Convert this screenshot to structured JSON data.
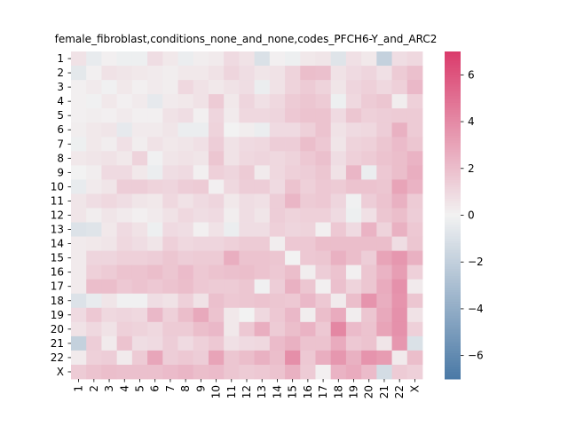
{
  "chart_data": {
    "type": "heatmap",
    "title": "female_fibroblast,conditions_none_and_none,codes_PFCH6-Y_and_ARC2",
    "xlabel": "",
    "ylabel": "",
    "x_categories": [
      "1",
      "2",
      "3",
      "4",
      "5",
      "6",
      "7",
      "8",
      "9",
      "10",
      "11",
      "12",
      "13",
      "14",
      "15",
      "16",
      "17",
      "18",
      "19",
      "20",
      "21",
      "22",
      "X"
    ],
    "y_categories": [
      "1",
      "2",
      "3",
      "4",
      "5",
      "6",
      "7",
      "8",
      "9",
      "10",
      "11",
      "12",
      "13",
      "14",
      "15",
      "16",
      "17",
      "18",
      "19",
      "20",
      "21",
      "22",
      "X"
    ],
    "values": [
      [
        0.6,
        -0.4,
        0.1,
        -0.2,
        -0.2,
        0.8,
        0.4,
        -0.3,
        0.2,
        0.3,
        0.9,
        0.6,
        -1.0,
        0.1,
        -0.2,
        0.4,
        0.5,
        -0.8,
        0.7,
        0.4,
        -1.9,
        0.8,
        1.0
      ],
      [
        -0.6,
        0.1,
        0.6,
        0.5,
        0.4,
        0.3,
        0.2,
        0.4,
        0.4,
        0.6,
        1.1,
        0.8,
        0.5,
        0.6,
        1.2,
        2.0,
        1.9,
        0.6,
        0.9,
        1.1,
        0.7,
        1.5,
        1.9
      ],
      [
        0.1,
        0.3,
        -0.1,
        0.4,
        0.1,
        0.3,
        0.2,
        1.0,
        0.6,
        0.4,
        0.6,
        0.8,
        -0.3,
        0.6,
        1.2,
        1.5,
        1.2,
        0.5,
        1.1,
        1.3,
        1.0,
        1.3,
        2.2
      ],
      [
        0.1,
        -0.1,
        0.4,
        0.1,
        0.3,
        -0.5,
        0.3,
        0.4,
        0.6,
        1.5,
        0.4,
        1.1,
        0.7,
        1.0,
        1.5,
        1.7,
        1.5,
        -0.2,
        1.0,
        1.5,
        1.7,
        0.2,
        1.3
      ],
      [
        0.1,
        0.2,
        0.1,
        0.3,
        0.1,
        0.1,
        0.6,
        0.8,
        0.1,
        1.1,
        0.3,
        1.0,
        1.0,
        1.1,
        1.6,
        1.8,
        1.8,
        0.9,
        1.7,
        1.3,
        1.4,
        1.5,
        1.5
      ],
      [
        0.2,
        0.4,
        0.5,
        -0.5,
        0.3,
        0.3,
        0.5,
        -0.3,
        -0.3,
        1.2,
        0.0,
        0.2,
        -0.3,
        0.9,
        0.9,
        1.3,
        1.8,
        0.6,
        0.9,
        1.0,
        1.4,
        2.5,
        1.5
      ],
      [
        -0.2,
        0.4,
        0.2,
        0.7,
        0.2,
        0.6,
        0.4,
        0.5,
        0.7,
        1.4,
        0.6,
        0.9,
        1.0,
        1.4,
        1.4,
        2.0,
        1.6,
        0.5,
        1.2,
        1.3,
        1.7,
        2.1,
        1.7
      ],
      [
        0.4,
        0.5,
        0.6,
        0.4,
        1.2,
        -0.1,
        0.5,
        0.6,
        0.5,
        1.7,
        0.6,
        1.0,
        1.1,
        1.0,
        1.2,
        1.6,
        1.9,
        0.8,
        1.3,
        1.5,
        1.8,
        2.0,
        2.4
      ],
      [
        0.0,
        0.2,
        0.9,
        0.9,
        0.4,
        -0.3,
        0.8,
        0.9,
        0.1,
        1.3,
        1.1,
        1.5,
        0.3,
        1.0,
        1.3,
        1.4,
        1.7,
        0.6,
        2.3,
        -0.3,
        1.6,
        2.0,
        2.6
      ],
      [
        -0.4,
        0.3,
        0.5,
        1.4,
        1.4,
        1.2,
        1.1,
        1.4,
        1.5,
        0.1,
        1.0,
        1.4,
        1.4,
        0.9,
        1.8,
        1.3,
        1.6,
        1.5,
        1.8,
        1.8,
        1.7,
        3.0,
        2.4
      ],
      [
        0.5,
        0.8,
        1.0,
        0.8,
        0.5,
        0.4,
        1.0,
        0.6,
        0.9,
        1.1,
        0.4,
        0.8,
        0.7,
        1.4,
        2.3,
        1.5,
        1.6,
        1.1,
        -0.1,
        1.4,
        1.8,
        2.5,
        1.5
      ],
      [
        0.5,
        0.2,
        0.5,
        0.3,
        0.1,
        0.3,
        0.6,
        1.0,
        0.8,
        0.9,
        0.2,
        0.8,
        0.5,
        1.4,
        1.2,
        1.3,
        1.3,
        0.9,
        -0.2,
        0.7,
        1.7,
        2.0,
        1.4
      ],
      [
        -0.9,
        -0.8,
        0.4,
        0.9,
        0.6,
        -0.2,
        0.9,
        0.8,
        0.1,
        0.6,
        -0.3,
        0.8,
        0.8,
        1.3,
        1.1,
        1.2,
        0.1,
        1.6,
        0.9,
        2.4,
        1.2,
        2.5,
        1.6
      ],
      [
        0.3,
        0.4,
        0.5,
        1.0,
        0.8,
        0.5,
        1.3,
        1.0,
        1.1,
        1.1,
        1.3,
        1.5,
        1.5,
        0.2,
        1.6,
        1.6,
        2.0,
        2.0,
        2.0,
        2.0,
        2.0,
        0.8,
        1.7
      ],
      [
        0.3,
        1.1,
        1.1,
        1.3,
        1.3,
        1.4,
        1.7,
        1.4,
        1.5,
        1.5,
        2.6,
        1.8,
        1.8,
        1.7,
        0.0,
        1.6,
        1.7,
        2.5,
        2.0,
        1.4,
        3.0,
        3.5,
        2.5
      ],
      [
        0.3,
        1.3,
        1.5,
        1.8,
        1.8,
        2.0,
        1.7,
        2.1,
        1.6,
        1.8,
        1.9,
        2.0,
        1.8,
        1.6,
        2.0,
        0.2,
        1.4,
        1.8,
        0.1,
        1.7,
        2.4,
        3.2,
        1.3
      ],
      [
        0.3,
        2.0,
        2.0,
        1.6,
        1.8,
        1.6,
        1.8,
        2.0,
        1.6,
        1.5,
        1.5,
        1.7,
        -0.1,
        1.4,
        2.5,
        1.7,
        0.1,
        1.9,
        1.2,
        1.7,
        2.7,
        3.7,
        0.3
      ],
      [
        -0.9,
        -0.4,
        0.5,
        -0.1,
        -0.1,
        0.8,
        0.6,
        1.3,
        0.6,
        1.9,
        1.6,
        1.7,
        1.8,
        1.7,
        1.6,
        2.2,
        1.6,
        0.3,
        2.0,
        3.6,
        2.6,
        3.6,
        1.7
      ],
      [
        0.9,
        1.6,
        1.0,
        1.1,
        1.0,
        2.2,
        1.3,
        2.0,
        2.8,
        1.8,
        0.4,
        0.0,
        1.0,
        1.6,
        2.2,
        0.2,
        2.0,
        2.7,
        0.2,
        1.7,
        2.8,
        3.7,
        0.6
      ],
      [
        0.6,
        1.0,
        0.6,
        1.3,
        1.2,
        1.0,
        1.5,
        1.5,
        2.0,
        2.2,
        0.4,
        1.6,
        2.6,
        1.5,
        2.0,
        2.4,
        1.6,
        4.1,
        2.1,
        1.8,
        3.0,
        3.7,
        1.3
      ],
      [
        -1.9,
        1.4,
        0.3,
        1.8,
        0.8,
        0.9,
        1.4,
        0.9,
        1.3,
        1.6,
        0.7,
        0.9,
        1.0,
        2.1,
        2.5,
        1.8,
        1.8,
        2.7,
        1.6,
        1.8,
        0.5,
        3.5,
        -1.0
      ],
      [
        0.3,
        1.3,
        1.4,
        0.3,
        1.5,
        2.9,
        1.4,
        1.6,
        1.4,
        3.0,
        1.7,
        2.0,
        2.5,
        2.0,
        3.8,
        1.6,
        2.6,
        3.5,
        2.5,
        3.6,
        3.3,
        0.3,
        2.0
      ],
      [
        1.5,
        1.8,
        2.0,
        1.9,
        1.9,
        1.9,
        2.1,
        2.3,
        2.0,
        2.1,
        1.7,
        1.5,
        1.6,
        1.8,
        2.5,
        1.5,
        0.1,
        2.4,
        2.7,
        2.1,
        -1.3,
        1.5,
        1.3
      ]
    ],
    "colorbar": {
      "vmin": -7,
      "vmax": 7,
      "ticks": [
        -6,
        -4,
        -2,
        0,
        2,
        4,
        6
      ],
      "tick_labels": [
        "−6",
        "−4",
        "−2",
        "0",
        "2",
        "4",
        "6"
      ],
      "low_color": "#4a79a6",
      "mid_color": "#f2f2f2",
      "high_color": "#da3b6b"
    },
    "grid": false
  }
}
